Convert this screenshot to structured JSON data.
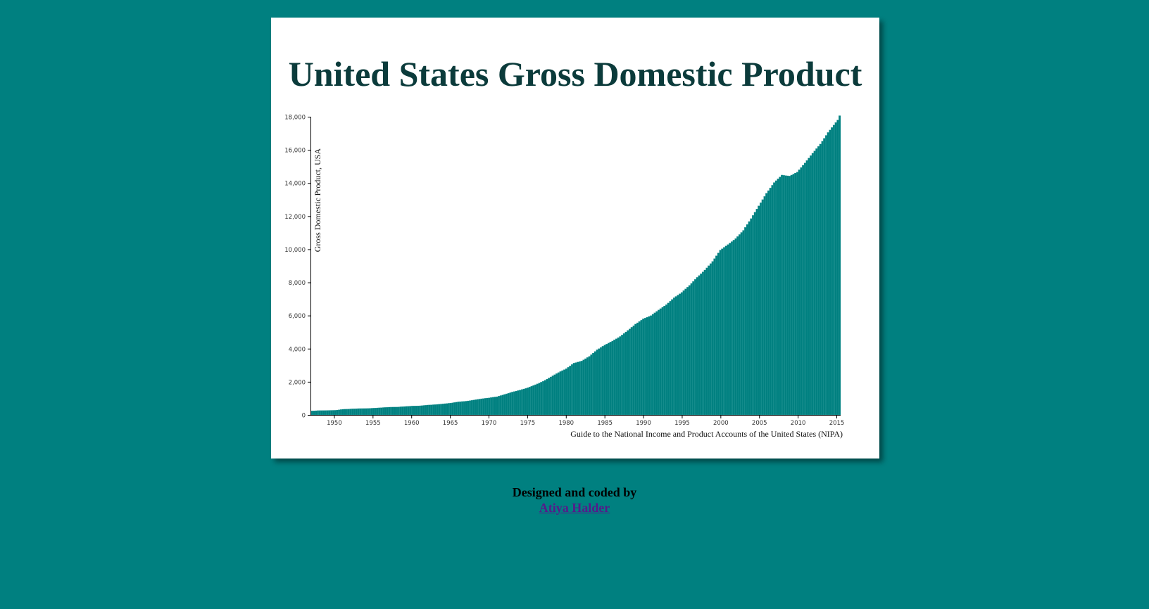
{
  "footer": {
    "credit": "Designed and coded by",
    "author": "Atiya Halder"
  },
  "chart_data": {
    "type": "bar",
    "title": "United States Gross Domestic Product",
    "ylabel": "Gross Domestic Product, USA",
    "xlabel": "Guide to the National Income and Product Accounts of the United States (NIPA)",
    "xlim": [
      1947,
      2015.5
    ],
    "ylim": [
      0,
      18000
    ],
    "y_ticks": [
      "0",
      "2,000",
      "4,000",
      "6,000",
      "8,000",
      "10,000",
      "12,000",
      "14,000",
      "16,000",
      "18,000"
    ],
    "y_tick_values": [
      0,
      2000,
      4000,
      6000,
      8000,
      10000,
      12000,
      14000,
      16000,
      18000
    ],
    "x_ticks": [
      "1950",
      "1955",
      "1960",
      "1965",
      "1970",
      "1975",
      "1980",
      "1985",
      "1990",
      "1995",
      "2000",
      "2005",
      "2010",
      "2015"
    ],
    "x_tick_values": [
      1950,
      1955,
      1960,
      1965,
      1970,
      1975,
      1980,
      1985,
      1990,
      1995,
      2000,
      2005,
      2010,
      2015
    ],
    "frequency": "quarterly",
    "start_year": 1947,
    "yearly_anchor_values": [
      [
        1947,
        243
      ],
      [
        1948,
        266
      ],
      [
        1949,
        273
      ],
      [
        1950,
        280
      ],
      [
        1951,
        340
      ],
      [
        1952,
        362
      ],
      [
        1953,
        383
      ],
      [
        1954,
        387
      ],
      [
        1955,
        410
      ],
      [
        1956,
        440
      ],
      [
        1957,
        468
      ],
      [
        1958,
        475
      ],
      [
        1959,
        507
      ],
      [
        1960,
        537
      ],
      [
        1961,
        551
      ],
      [
        1962,
        596
      ],
      [
        1963,
        625
      ],
      [
        1964,
        668
      ],
      [
        1965,
        716
      ],
      [
        1966,
        789
      ],
      [
        1967,
        830
      ],
      [
        1968,
        900
      ],
      [
        1969,
        976
      ],
      [
        1970,
        1033
      ],
      [
        1971,
        1100
      ],
      [
        1972,
        1238
      ],
      [
        1973,
        1382
      ],
      [
        1974,
        1500
      ],
      [
        1975,
        1638
      ],
      [
        1976,
        1825
      ],
      [
        1977,
        2030
      ],
      [
        1978,
        2294
      ],
      [
        1979,
        2563
      ],
      [
        1980,
        2790
      ],
      [
        1981,
        3128
      ],
      [
        1982,
        3255
      ],
      [
        1983,
        3536
      ],
      [
        1984,
        3931
      ],
      [
        1985,
        4218
      ],
      [
        1986,
        4460
      ],
      [
        1987,
        4736
      ],
      [
        1988,
        5100
      ],
      [
        1989,
        5482
      ],
      [
        1990,
        5800
      ],
      [
        1991,
        5993
      ],
      [
        1992,
        6337
      ],
      [
        1993,
        6657
      ],
      [
        1994,
        7072
      ],
      [
        1995,
        7397
      ],
      [
        1996,
        7817
      ],
      [
        1997,
        8304
      ],
      [
        1998,
        8747
      ],
      [
        1999,
        9268
      ],
      [
        2000,
        9951
      ],
      [
        2001,
        10286
      ],
      [
        2002,
        10642
      ],
      [
        2003,
        11142
      ],
      [
        2004,
        11853
      ],
      [
        2005,
        12623
      ],
      [
        2006,
        13377
      ],
      [
        2007,
        14028
      ],
      [
        2008,
        14480
      ],
      [
        2009,
        14420
      ],
      [
        2010,
        14660
      ],
      [
        2011,
        15210
      ],
      [
        2012,
        15800
      ],
      [
        2013,
        16350
      ],
      [
        2014,
        17050
      ],
      [
        2015,
        17650
      ],
      [
        2015.25,
        17800
      ],
      [
        2015.5,
        18064
      ]
    ],
    "bar_color": "#008080",
    "bar_stroke": "#2a9a9a"
  }
}
